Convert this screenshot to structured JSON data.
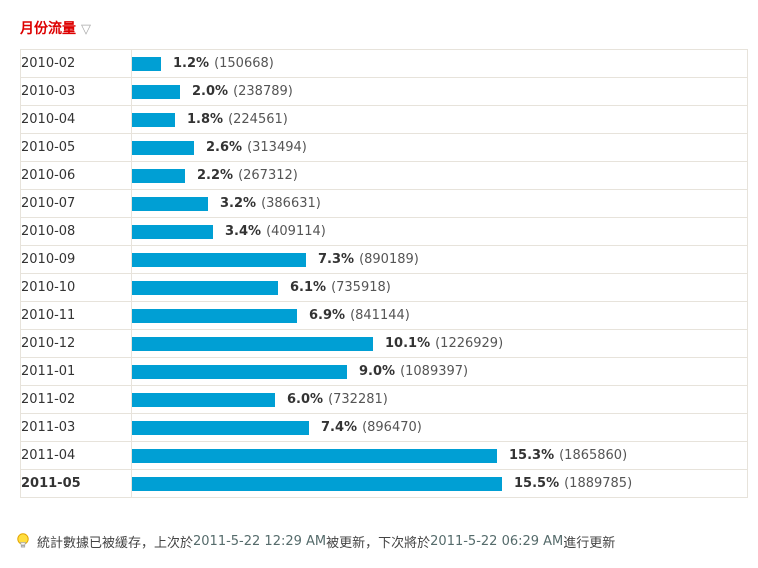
{
  "header": {
    "title": "月份流量",
    "sort_icon": "▽"
  },
  "table": {
    "rows": [
      {
        "month": "2010-02",
        "percent": "1.2%",
        "value": 1.2,
        "count": "150668",
        "bold": false
      },
      {
        "month": "2010-03",
        "percent": "2.0%",
        "value": 2.0,
        "count": "238789",
        "bold": false
      },
      {
        "month": "2010-04",
        "percent": "1.8%",
        "value": 1.8,
        "count": "224561",
        "bold": false
      },
      {
        "month": "2010-05",
        "percent": "2.6%",
        "value": 2.6,
        "count": "313494",
        "bold": false
      },
      {
        "month": "2010-06",
        "percent": "2.2%",
        "value": 2.2,
        "count": "267312",
        "bold": false
      },
      {
        "month": "2010-07",
        "percent": "3.2%",
        "value": 3.2,
        "count": "386631",
        "bold": false
      },
      {
        "month": "2010-08",
        "percent": "3.4%",
        "value": 3.4,
        "count": "409114",
        "bold": false
      },
      {
        "month": "2010-09",
        "percent": "7.3%",
        "value": 7.3,
        "count": "890189",
        "bold": false
      },
      {
        "month": "2010-10",
        "percent": "6.1%",
        "value": 6.1,
        "count": "735918",
        "bold": false
      },
      {
        "month": "2010-11",
        "percent": "6.9%",
        "value": 6.9,
        "count": "841144",
        "bold": false
      },
      {
        "month": "2010-12",
        "percent": "10.1%",
        "value": 10.1,
        "count": "1226929",
        "bold": false
      },
      {
        "month": "2011-01",
        "percent": "9.0%",
        "value": 9.0,
        "count": "1089397",
        "bold": false
      },
      {
        "month": "2011-02",
        "percent": "6.0%",
        "value": 6.0,
        "count": "732281",
        "bold": false
      },
      {
        "month": "2011-03",
        "percent": "7.4%",
        "value": 7.4,
        "count": "896470",
        "bold": false
      },
      {
        "month": "2011-04",
        "percent": "15.3%",
        "value": 15.3,
        "count": "1865860",
        "bold": false
      },
      {
        "month": "2011-05",
        "percent": "15.5%",
        "value": 15.5,
        "count": "1889785",
        "bold": true
      }
    ]
  },
  "footer": {
    "seg1": "統計數據已被緩存，上次於",
    "updated_at": "2011-5-22 12:29 AM",
    "seg2": "被更新，下次將於",
    "next_update_at": "2011-5-22 06:29 AM",
    "seg3": "進行更新"
  },
  "colors": {
    "bar": "#009FD4",
    "header_red": "#DD0000",
    "border": "#E7E3DB"
  },
  "chart_data": {
    "type": "bar",
    "orientation": "horizontal",
    "title": "月份流量",
    "categories": [
      "2010-02",
      "2010-03",
      "2010-04",
      "2010-05",
      "2010-06",
      "2010-07",
      "2010-08",
      "2010-09",
      "2010-10",
      "2010-11",
      "2010-12",
      "2011-01",
      "2011-02",
      "2011-03",
      "2011-04",
      "2011-05"
    ],
    "values": [
      1.2,
      2.0,
      1.8,
      2.6,
      2.2,
      3.2,
      3.4,
      7.3,
      6.1,
      6.9,
      10.1,
      9.0,
      6.0,
      7.4,
      15.3,
      15.5
    ],
    "counts": [
      150668,
      238789,
      224561,
      313494,
      267312,
      386631,
      409114,
      890189,
      735918,
      841144,
      1226929,
      1089397,
      732281,
      896470,
      1865860,
      1889785
    ],
    "value_unit": "%",
    "xlabel": "",
    "ylabel": "",
    "xlim": [
      0,
      16
    ],
    "grid": false,
    "legend": false
  }
}
